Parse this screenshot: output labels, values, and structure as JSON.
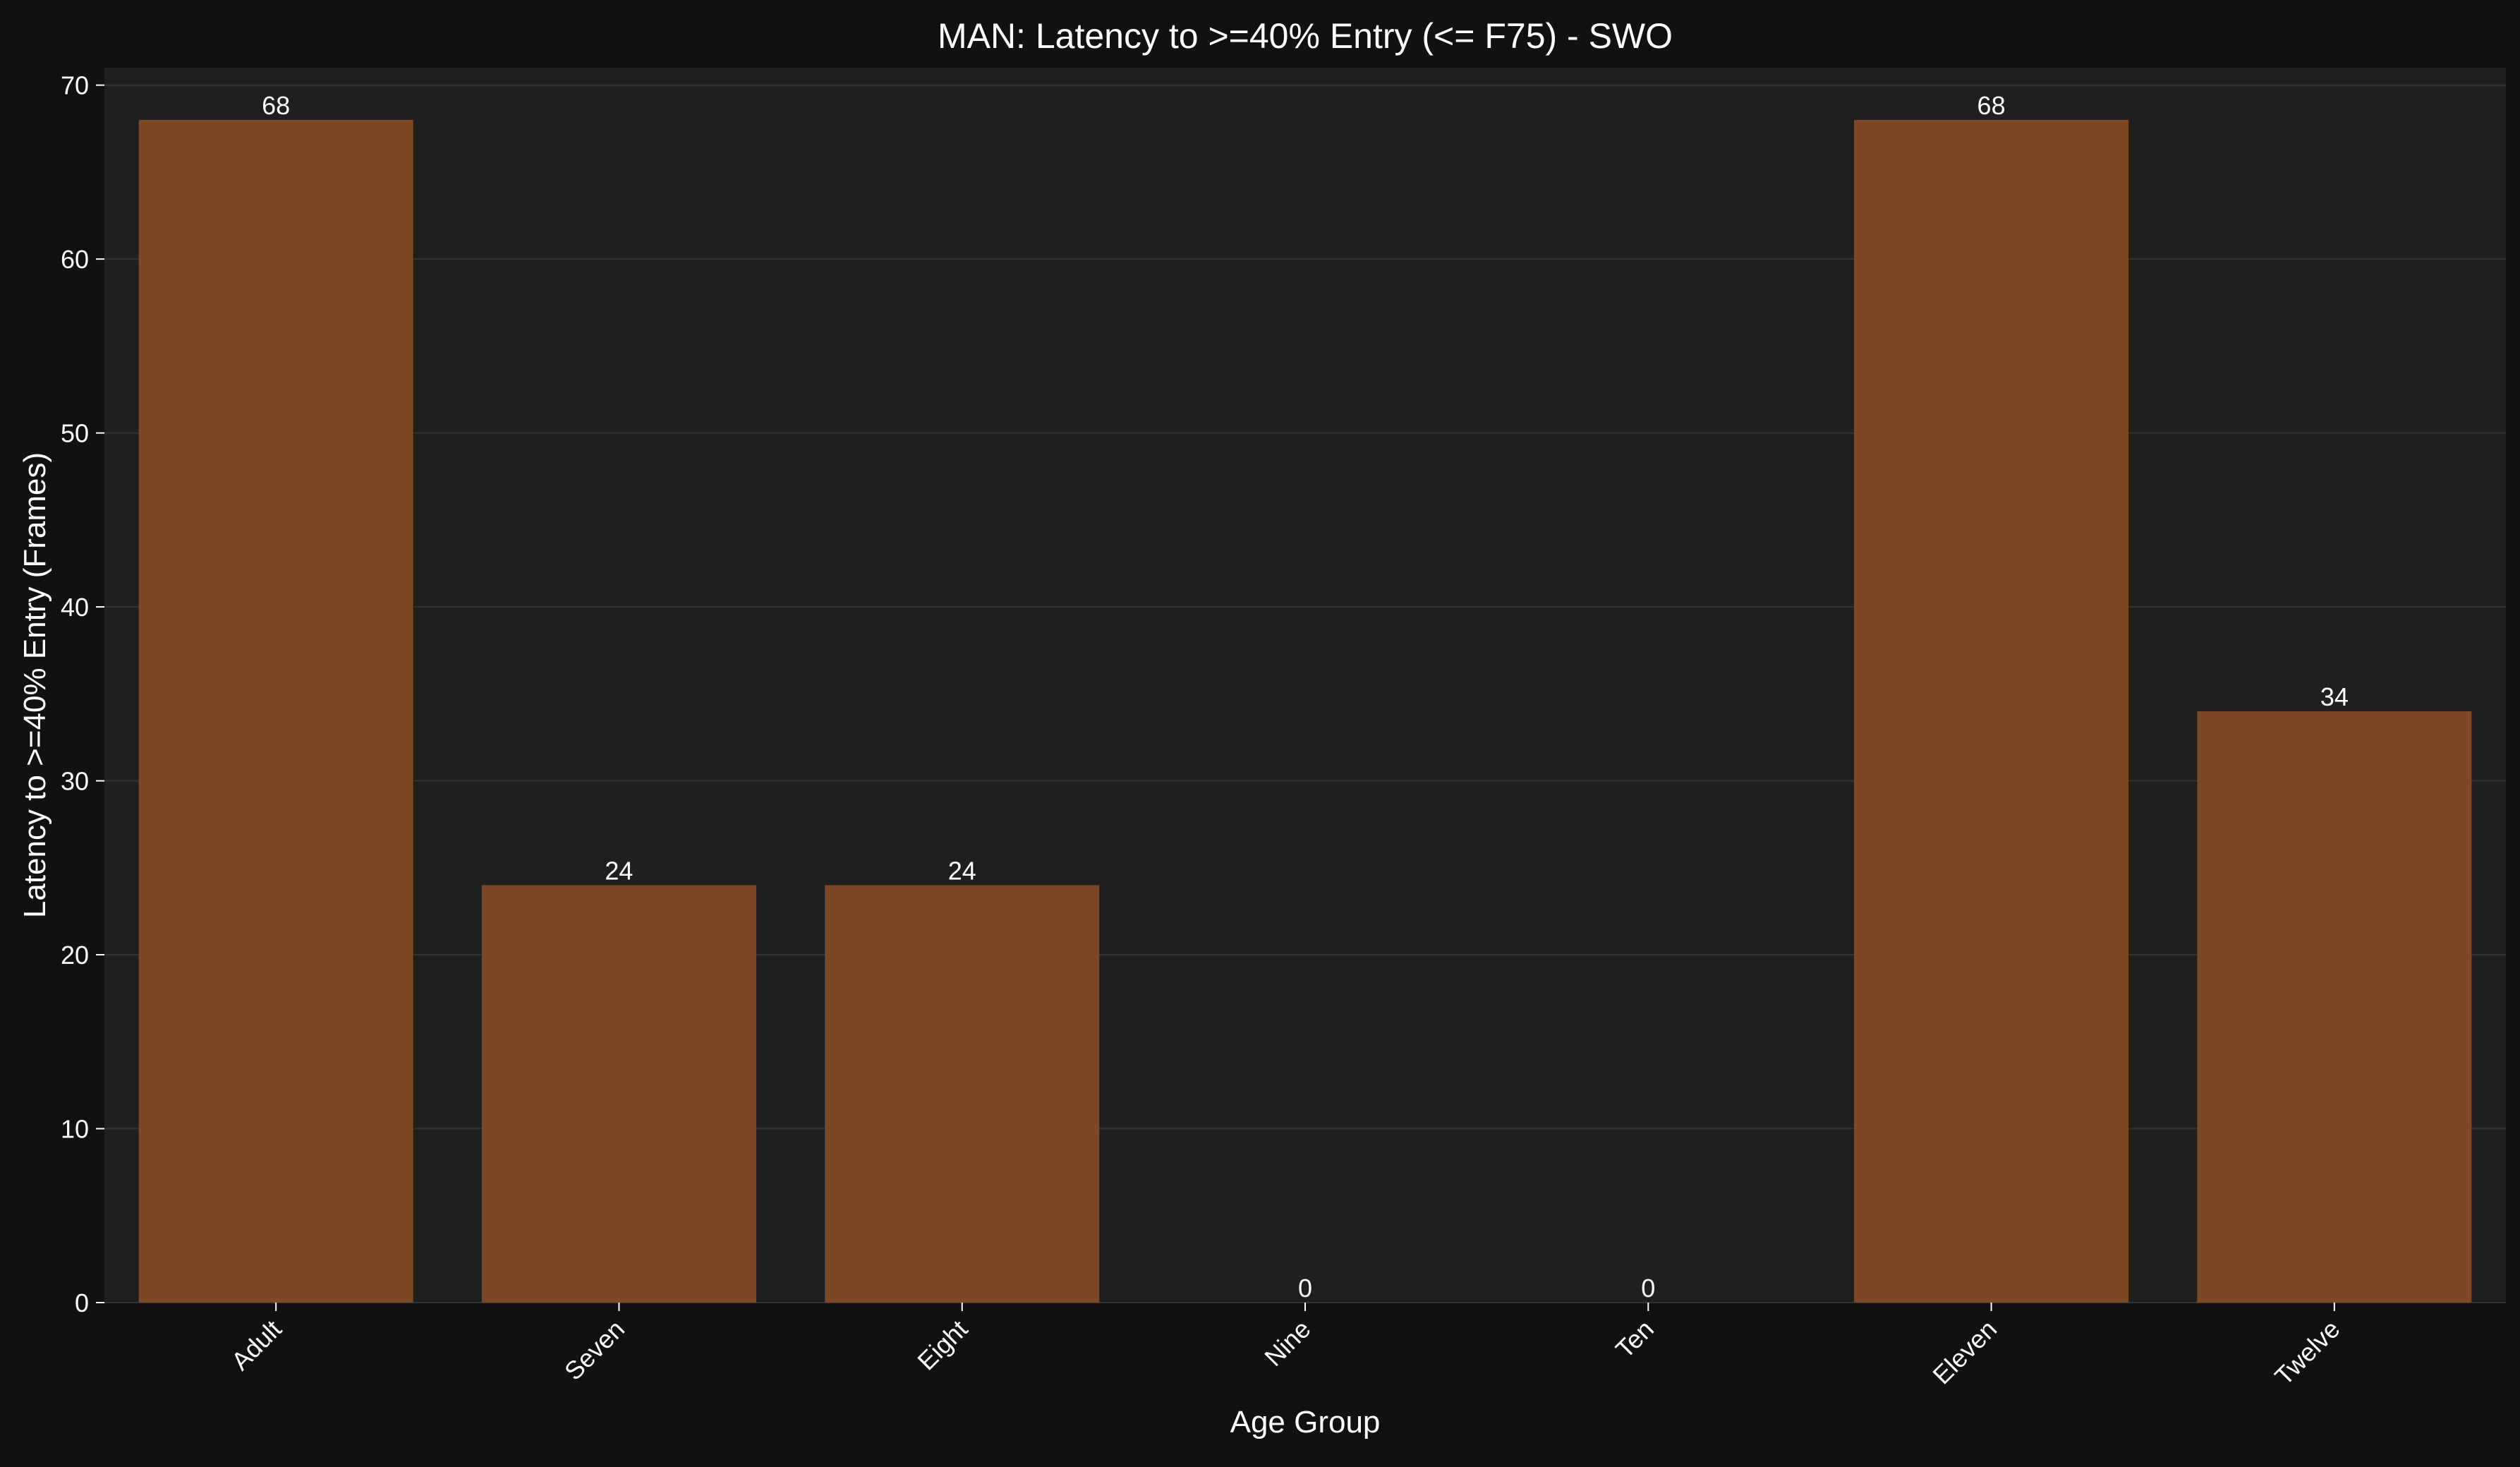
{
  "chart_data": {
    "type": "bar",
    "title": "MAN: Latency to >=40% Entry (<= F75) - SWO",
    "xlabel": "Age Group",
    "ylabel": "Latency to >=40% Entry (Frames)",
    "categories": [
      "Adult",
      "Seven",
      "Eight",
      "Nine",
      "Ten",
      "Eleven",
      "Twelve"
    ],
    "values": [
      68,
      24,
      24,
      0,
      0,
      68,
      34
    ],
    "value_labels": [
      "68",
      "24",
      "24",
      "0",
      "0",
      "68",
      "34"
    ],
    "ylim": [
      0,
      71
    ],
    "yticks": [
      0,
      10,
      20,
      30,
      40,
      50,
      60,
      70
    ],
    "ytick_labels": [
      "0",
      "10",
      "20",
      "30",
      "40",
      "50",
      "60",
      "70"
    ],
    "grid": "horizontal",
    "legend": "none",
    "colors": {
      "figure_background": "#111111",
      "plot_background": "#1f1f1f",
      "bar": "#7d4825",
      "grid": "#333333",
      "text": "#ffffff"
    }
  }
}
